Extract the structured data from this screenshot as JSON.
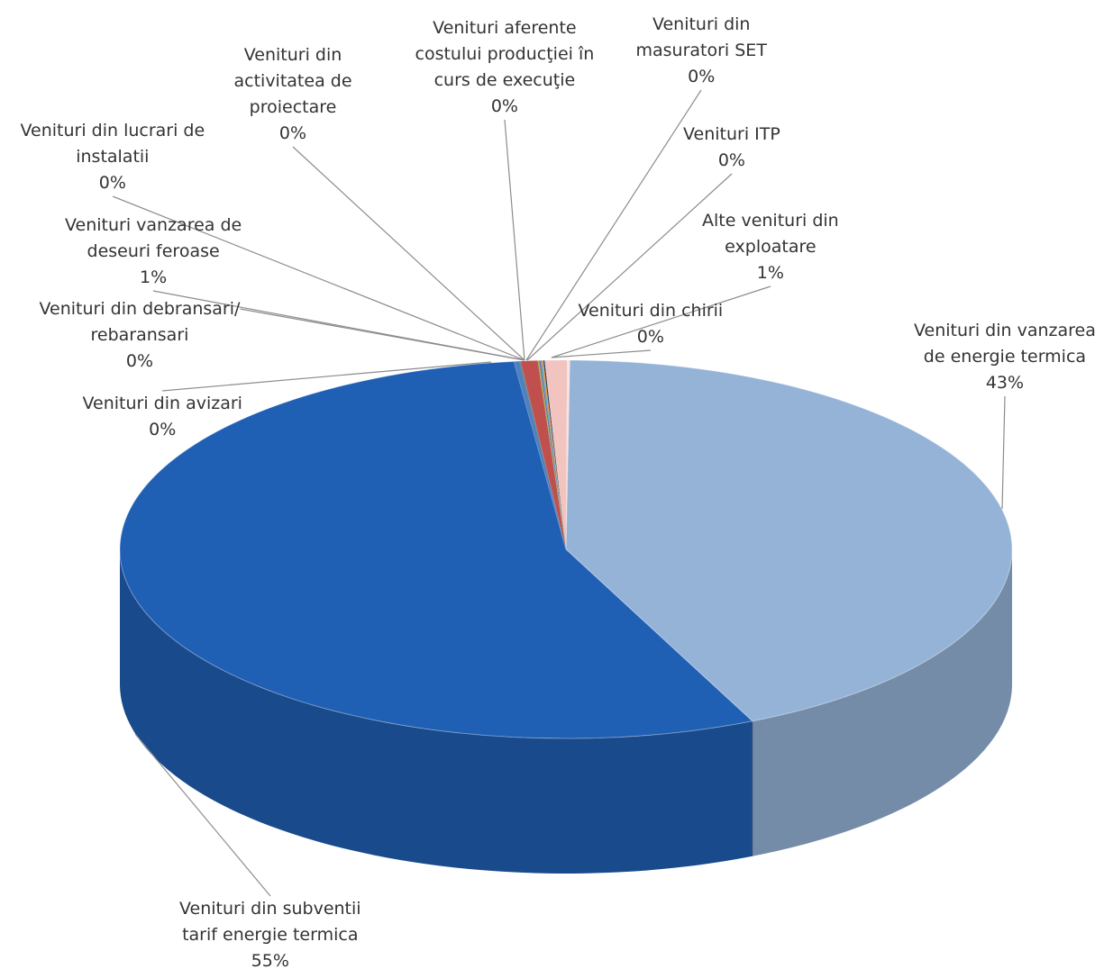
{
  "chart_data": {
    "type": "pie",
    "style": "3d",
    "title": "",
    "slices": [
      {
        "name": "Venituri din vanzarea de energie termica",
        "lines": [
          "Venituri din vanzarea",
          "de energie termica"
        ],
        "percent_label": "43%",
        "value": 43,
        "color": "#95b3d7"
      },
      {
        "name": "Venituri din subventii tarif energie termica",
        "lines": [
          "Venituri din subventii",
          "tarif energie termica"
        ],
        "percent_label": "55%",
        "value": 55,
        "color": "#1f5fb4"
      },
      {
        "name": "Venituri din avizari",
        "lines": [
          "Venituri din avizari"
        ],
        "percent_label": "0%",
        "value": 0.2,
        "color": "#4f81bd"
      },
      {
        "name": "Venituri din debransari/ rebaransari",
        "lines": [
          "Venituri din debransari/",
          "rebaransari"
        ],
        "percent_label": "0%",
        "value": 0.05,
        "color": "#7f7f7f"
      },
      {
        "name": "Venituri vanzarea de deseuri feroase",
        "lines": [
          "Venituri vanzarea de",
          "deseuri feroase"
        ],
        "percent_label": "1%",
        "value": 0.6,
        "color": "#c0504d"
      },
      {
        "name": "Venituri din lucrari de instalatii",
        "lines": [
          "Venituri din lucrari de",
          "instalatii"
        ],
        "percent_label": "0%",
        "value": 0.05,
        "color": "#9bbb59"
      },
      {
        "name": "Venituri din activitatea de proiectare",
        "lines": [
          "Venituri din",
          "activitatea de",
          "proiectare"
        ],
        "percent_label": "0%",
        "value": 0.05,
        "color": "#8064a2"
      },
      {
        "name": "Venituri aferente costului producţiei în curs de execuţie",
        "lines": [
          "Venituri aferente",
          "costului producţiei în",
          "curs de execuţie"
        ],
        "percent_label": "0%",
        "value": 0.05,
        "color": "#4bacc6"
      },
      {
        "name": "Venituri din masuratori SET",
        "lines": [
          "Venituri din",
          "masuratori SET"
        ],
        "percent_label": "0%",
        "value": 0.05,
        "color": "#f79646"
      },
      {
        "name": "Venituri ITP",
        "lines": [
          "Venituri ITP"
        ],
        "percent_label": "0%",
        "value": 0.05,
        "color": "#2c4d75"
      },
      {
        "name": "Alte venituri din exploatare",
        "lines": [
          "Alte venituri din",
          "exploatare"
        ],
        "percent_label": "1%",
        "value": 0.8,
        "color": "#f2c4c0"
      },
      {
        "name": "Venituri din chirii",
        "lines": [
          "Venituri din chirii"
        ],
        "percent_label": "0%",
        "value": 0.1,
        "color": "#fbe3e1"
      }
    ]
  }
}
